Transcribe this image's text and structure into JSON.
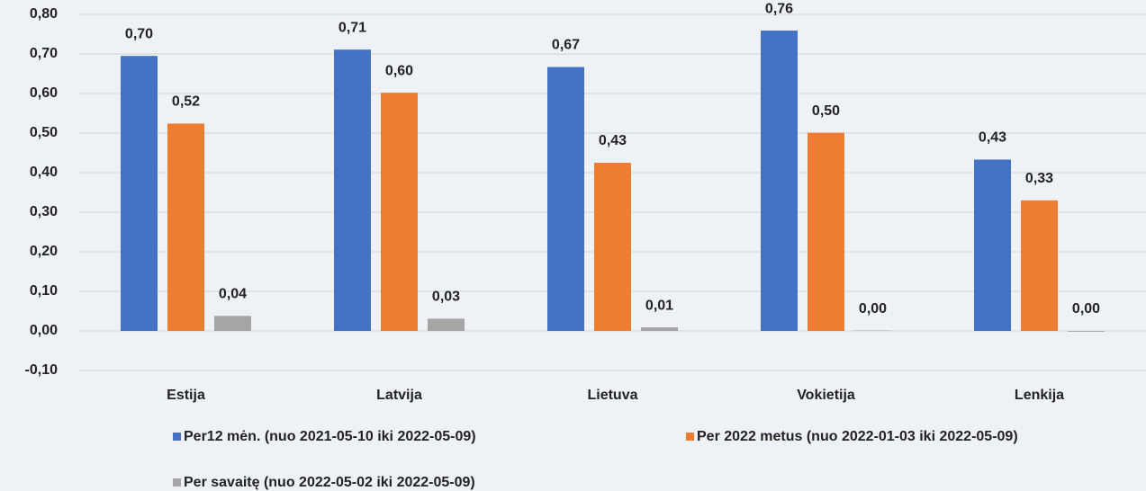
{
  "chart_data": {
    "type": "bar",
    "categories": [
      "Estija",
      "Latvija",
      "Lietuva",
      "Vokietija",
      "Lenkija"
    ],
    "series": [
      {
        "name": "Per12 mėn. (nuo 2021-05-10 iki 2022-05-09)",
        "color": "#4472c4",
        "values": [
          0.695,
          0.711,
          0.667,
          0.759,
          0.433
        ],
        "value_labels": [
          "0,70",
          "0,71",
          "0,67",
          "0,76",
          "0,43"
        ]
      },
      {
        "name": "Per 2022 metus (nuo 2022-01-03 iki 2022-05-09)",
        "color": "#ed7d31",
        "values": [
          0.524,
          0.602,
          0.425,
          0.501,
          0.33
        ],
        "value_labels": [
          "0,52",
          "0,60",
          "0,43",
          "0,50",
          "0,33"
        ]
      },
      {
        "name": "Per savaitę (nuo 2022-05-02 iki 2022-05-09)",
        "color": "#a5a5a5",
        "values": [
          0.038,
          0.031,
          0.009,
          0.001,
          -0.002
        ],
        "value_labels": [
          "0,04",
          "0,03",
          "0,01",
          "0,00",
          "0,00"
        ]
      }
    ],
    "ylim": [
      -0.1,
      0.8
    ],
    "yticks": [
      {
        "value": -0.1,
        "label": "-0,10"
      },
      {
        "value": 0,
        "label": "0,00"
      },
      {
        "value": 0.1,
        "label": "0,10"
      },
      {
        "value": 0.2,
        "label": "0,20"
      },
      {
        "value": 0.3,
        "label": "0,30"
      },
      {
        "value": 0.4,
        "label": "0,40"
      },
      {
        "value": 0.5,
        "label": "0,50"
      },
      {
        "value": 0.6,
        "label": "0,60"
      },
      {
        "value": 0.7,
        "label": "0,70"
      },
      {
        "value": 0.8,
        "label": "0,80"
      }
    ],
    "grid": true
  }
}
